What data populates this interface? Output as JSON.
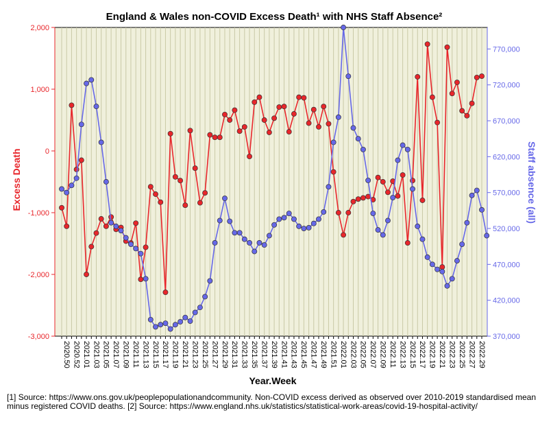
{
  "chart_data": {
    "type": "line",
    "title": "England & Wales non-COVID Excess Death¹ with NHS Staff Absence²",
    "xlabel": "Year.Week",
    "y_left_label": "Excess Death",
    "y_right_label": "Staff absence (all)",
    "y_left_range": [
      -3000,
      2000
    ],
    "y_right_range": [
      370000,
      800000
    ],
    "y_left_ticks": [
      2000,
      1000,
      0,
      -1000,
      -2000,
      -3000
    ],
    "y_left_tick_labels": [
      "2,000",
      "1,000",
      "0",
      "-1,000",
      "-2,000",
      "-3,000"
    ],
    "y_right_ticks": [
      770000,
      720000,
      670000,
      620000,
      570000,
      520000,
      470000,
      420000,
      370000
    ],
    "y_right_tick_labels": [
      "770,000",
      "720,000",
      "670,000",
      "620,000",
      "570,000",
      "520,000",
      "470,000",
      "420,000",
      "370,000"
    ],
    "x_tick_labels": [
      "2020.50",
      "2020.52",
      "2021.01",
      "2021.03",
      "2021.05",
      "2021.07",
      "2021.09",
      "2021.11",
      "2021.13",
      "2021.15",
      "2021.17",
      "2021.19",
      "2021.21",
      "2021.23",
      "2021.25",
      "2021.27",
      "2021.29",
      "2021.31",
      "2021.33",
      "2021.35",
      "2021.37",
      "2021.39",
      "2021.41",
      "2021.43",
      "2021.45",
      "2021.47",
      "2021.49",
      "2021.51",
      "2022.01",
      "2022.03",
      "2022.05",
      "2022.07",
      "2022.09",
      "2022.11",
      "2022.13",
      "2022.15",
      "2022.17",
      "2022.19",
      "2022.21",
      "2022.23",
      "2022.25",
      "2022.27",
      "2022.29"
    ],
    "grid": true,
    "series": [
      {
        "name": "Excess Death",
        "axis": "left",
        "color": "#e8262b",
        "values": [
          -920,
          -1220,
          740,
          -300,
          -150,
          -2000,
          -1550,
          -1330,
          -1100,
          -1220,
          -1070,
          -1270,
          -1240,
          -1460,
          -1490,
          -1170,
          -2080,
          -1560,
          -580,
          -700,
          -830,
          -2290,
          280,
          -420,
          -480,
          -880,
          330,
          -280,
          -840,
          -680,
          260,
          220,
          220,
          590,
          500,
          660,
          320,
          390,
          -90,
          790,
          870,
          500,
          300,
          530,
          710,
          720,
          310,
          600,
          870,
          860,
          450,
          670,
          390,
          720,
          440,
          -340,
          -1000,
          -1360,
          -1000,
          -820,
          -780,
          -760,
          -740,
          -790,
          -430,
          -500,
          -670,
          -490,
          -730,
          -390,
          -1490,
          -480,
          1200,
          -800,
          1730,
          870,
          460,
          -1880,
          1680,
          930,
          1110,
          650,
          570,
          770,
          1190,
          1210
        ]
      },
      {
        "name": "Staff absence (all)",
        "axis": "right",
        "color": "#6668e8",
        "values": [
          575000,
          570000,
          580000,
          590000,
          665000,
          722000,
          727000,
          690000,
          640000,
          585000,
          528000,
          523000,
          517000,
          507000,
          498000,
          492000,
          485000,
          450000,
          393000,
          383000,
          386000,
          388000,
          380000,
          386000,
          390000,
          396000,
          391000,
          403000,
          410000,
          425000,
          447000,
          500000,
          531000,
          562000,
          530000,
          514000,
          514000,
          505000,
          500000,
          488000,
          500000,
          497000,
          510000,
          525000,
          533000,
          535000,
          541000,
          533000,
          523000,
          520000,
          521000,
          527000,
          533000,
          543000,
          578000,
          640000,
          675000,
          800000,
          732000,
          660000,
          645000,
          630000,
          587000,
          541000,
          518000,
          511000,
          531000,
          563000,
          615000,
          636000,
          630000,
          575000,
          523000,
          505000,
          480000,
          470000,
          463000,
          460000,
          440000,
          450000,
          475000,
          498000,
          528000,
          566000,
          573000,
          546000,
          510000
        ]
      }
    ]
  },
  "footnote": "[1] Source: https://www.ons.gov.uk/peoplepopulationandcommunity. Non-COVID excess derived as observed over 2010-2019 standardised mean minus registered COVID deaths. [2] Source: https://www.england.nhs.uk/statistics/statistical-work-areas/covid-19-hospital-activity/",
  "colors": {
    "plot_background": "#f0f0dc",
    "gridline": "#c9c9a6",
    "left_axis": "#e8262b",
    "right_axis": "#6668e8"
  }
}
